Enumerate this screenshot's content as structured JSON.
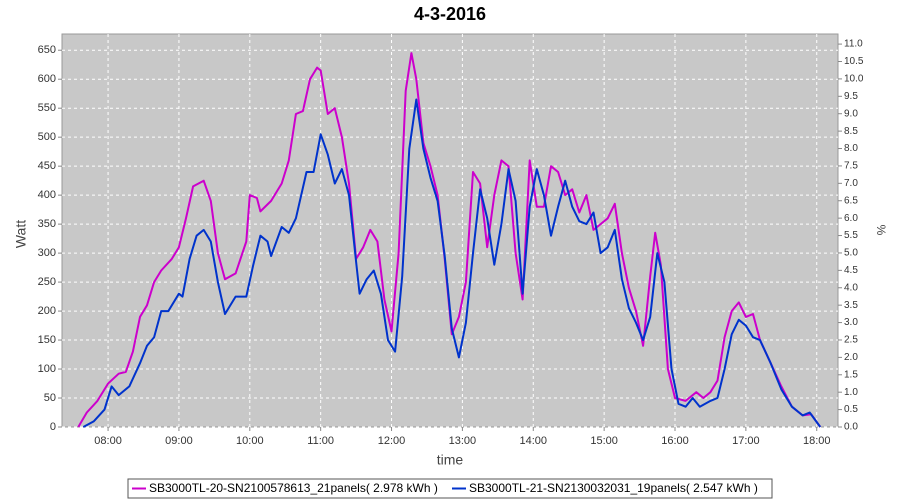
{
  "chart_data": {
    "type": "line",
    "title": "4-3-2016",
    "xlabel": "time",
    "ylabel": "Watt",
    "y2label": "%",
    "xlim": [
      7.35,
      18.3
    ],
    "xticks": [
      {
        "value": 8,
        "label": "08:00"
      },
      {
        "value": 9,
        "label": "09:00"
      },
      {
        "value": 10,
        "label": "10:00"
      },
      {
        "value": 11,
        "label": "11:00"
      },
      {
        "value": 12,
        "label": "12:00"
      },
      {
        "value": 13,
        "label": "13:00"
      },
      {
        "value": 14,
        "label": "14:00"
      },
      {
        "value": 15,
        "label": "15:00"
      },
      {
        "value": 16,
        "label": "16:00"
      },
      {
        "value": 17,
        "label": "17:00"
      },
      {
        "value": 18,
        "label": "18:00"
      }
    ],
    "ylim": [
      0,
      678
    ],
    "yticks": [
      0,
      50,
      100,
      150,
      200,
      250,
      300,
      350,
      400,
      450,
      500,
      550,
      600,
      650
    ],
    "y2lim": [
      0,
      11.29
    ],
    "y2ticks": [
      {
        "value": 0,
        "label": "0.0"
      },
      {
        "value": 0.5,
        "label": "0.5"
      },
      {
        "value": 1,
        "label": "1.0"
      },
      {
        "value": 1.5,
        "label": "1.5"
      },
      {
        "value": 2,
        "label": "2.0"
      },
      {
        "value": 2.5,
        "label": "2.5"
      },
      {
        "value": 3,
        "label": "3.0"
      },
      {
        "value": 3.5,
        "label": "3.5"
      },
      {
        "value": 4,
        "label": "4.0"
      },
      {
        "value": 4.5,
        "label": "4.5"
      },
      {
        "value": 5,
        "label": "5.0"
      },
      {
        "value": 5.5,
        "label": "5.5"
      },
      {
        "value": 6,
        "label": "6.0"
      },
      {
        "value": 6.5,
        "label": "6.5"
      },
      {
        "value": 7,
        "label": "7.0"
      },
      {
        "value": 7.5,
        "label": "7.5"
      },
      {
        "value": 8,
        "label": "8.0"
      },
      {
        "value": 8.5,
        "label": "8.5"
      },
      {
        "value": 9,
        "label": "9.0"
      },
      {
        "value": 9.5,
        "label": "9.5"
      },
      {
        "value": 10,
        "label": "10.0"
      },
      {
        "value": 10.5,
        "label": "10.5"
      },
      {
        "value": 11,
        "label": "11.0"
      }
    ],
    "grid": true,
    "series": [
      {
        "name": "SB3000TL-20-SN2100578613_21panels( 2.978 kWh )",
        "color": "#cc00cc",
        "x": [
          7.58,
          7.7,
          7.85,
          8.0,
          8.15,
          8.25,
          8.35,
          8.45,
          8.55,
          8.65,
          8.75,
          8.9,
          9.0,
          9.1,
          9.2,
          9.35,
          9.45,
          9.55,
          9.65,
          9.8,
          9.95,
          10.0,
          10.1,
          10.15,
          10.3,
          10.45,
          10.55,
          10.65,
          10.75,
          10.85,
          10.95,
          11.0,
          11.1,
          11.2,
          11.3,
          11.4,
          11.5,
          11.6,
          11.7,
          11.8,
          11.9,
          12.0,
          12.1,
          12.2,
          12.28,
          12.35,
          12.45,
          12.55,
          12.65,
          12.75,
          12.85,
          12.95,
          13.05,
          13.15,
          13.25,
          13.35,
          13.45,
          13.55,
          13.65,
          13.75,
          13.85,
          13.95,
          14.05,
          14.15,
          14.25,
          14.35,
          14.45,
          14.55,
          14.65,
          14.75,
          14.85,
          14.95,
          15.05,
          15.15,
          15.25,
          15.35,
          15.45,
          15.55,
          15.65,
          15.72,
          15.8,
          15.9,
          16.0,
          16.15,
          16.3,
          16.4,
          16.5,
          16.6,
          16.7,
          16.8,
          16.9,
          17.0,
          17.1,
          17.2,
          17.35,
          17.5,
          17.65,
          17.8,
          17.92,
          18.05
        ],
        "values": [
          0,
          25,
          45,
          75,
          92,
          95,
          130,
          190,
          210,
          250,
          270,
          290,
          310,
          360,
          415,
          425,
          390,
          300,
          255,
          265,
          320,
          400,
          395,
          372,
          390,
          420,
          460,
          540,
          545,
          600,
          620,
          615,
          540,
          550,
          500,
          420,
          290,
          310,
          340,
          320,
          220,
          165,
          300,
          580,
          645,
          600,
          490,
          450,
          400,
          290,
          160,
          190,
          250,
          440,
          420,
          310,
          400,
          460,
          450,
          300,
          220,
          460,
          380,
          380,
          450,
          440,
          400,
          410,
          370,
          400,
          340,
          350,
          360,
          385,
          300,
          240,
          200,
          140,
          260,
          335,
          280,
          100,
          50,
          45,
          60,
          50,
          60,
          80,
          155,
          200,
          215,
          190,
          195,
          150,
          110,
          70,
          35,
          20,
          22,
          0
        ]
      },
      {
        "name": "SB3000TL-21-SN2130032031_19panels( 2.547 kWh )",
        "color": "#0033cc",
        "x": [
          7.65,
          7.8,
          7.95,
          8.05,
          8.15,
          8.3,
          8.45,
          8.55,
          8.65,
          8.75,
          8.85,
          9.0,
          9.05,
          9.15,
          9.25,
          9.35,
          9.45,
          9.55,
          9.65,
          9.8,
          9.95,
          10.05,
          10.15,
          10.25,
          10.3,
          10.45,
          10.55,
          10.65,
          10.8,
          10.9,
          11.0,
          11.1,
          11.2,
          11.3,
          11.4,
          11.5,
          11.55,
          11.65,
          11.75,
          11.85,
          11.95,
          12.05,
          12.15,
          12.25,
          12.35,
          12.45,
          12.55,
          12.65,
          12.75,
          12.85,
          12.95,
          13.05,
          13.15,
          13.25,
          13.35,
          13.45,
          13.55,
          13.65,
          13.75,
          13.85,
          13.95,
          14.05,
          14.15,
          14.25,
          14.35,
          14.45,
          14.55,
          14.65,
          14.75,
          14.85,
          14.95,
          15.05,
          15.15,
          15.25,
          15.35,
          15.45,
          15.55,
          15.65,
          15.75,
          15.85,
          15.95,
          16.05,
          16.15,
          16.25,
          16.35,
          16.5,
          16.6,
          16.7,
          16.8,
          16.9,
          17.0,
          17.1,
          17.2,
          17.35,
          17.5,
          17.65,
          17.8,
          17.9,
          18.05
        ],
        "values": [
          0,
          10,
          30,
          70,
          55,
          70,
          110,
          140,
          155,
          200,
          200,
          230,
          225,
          290,
          330,
          340,
          320,
          250,
          195,
          225,
          225,
          280,
          330,
          320,
          295,
          345,
          335,
          360,
          440,
          440,
          505,
          470,
          420,
          445,
          400,
          285,
          230,
          255,
          270,
          230,
          150,
          130,
          260,
          480,
          565,
          480,
          430,
          390,
          295,
          170,
          120,
          180,
          300,
          410,
          360,
          280,
          350,
          445,
          390,
          230,
          380,
          445,
          400,
          330,
          380,
          425,
          380,
          355,
          350,
          370,
          300,
          310,
          340,
          255,
          205,
          180,
          150,
          190,
          300,
          250,
          100,
          40,
          35,
          50,
          35,
          45,
          50,
          100,
          160,
          185,
          175,
          155,
          150,
          110,
          65,
          35,
          20,
          25,
          0
        ]
      }
    ]
  }
}
